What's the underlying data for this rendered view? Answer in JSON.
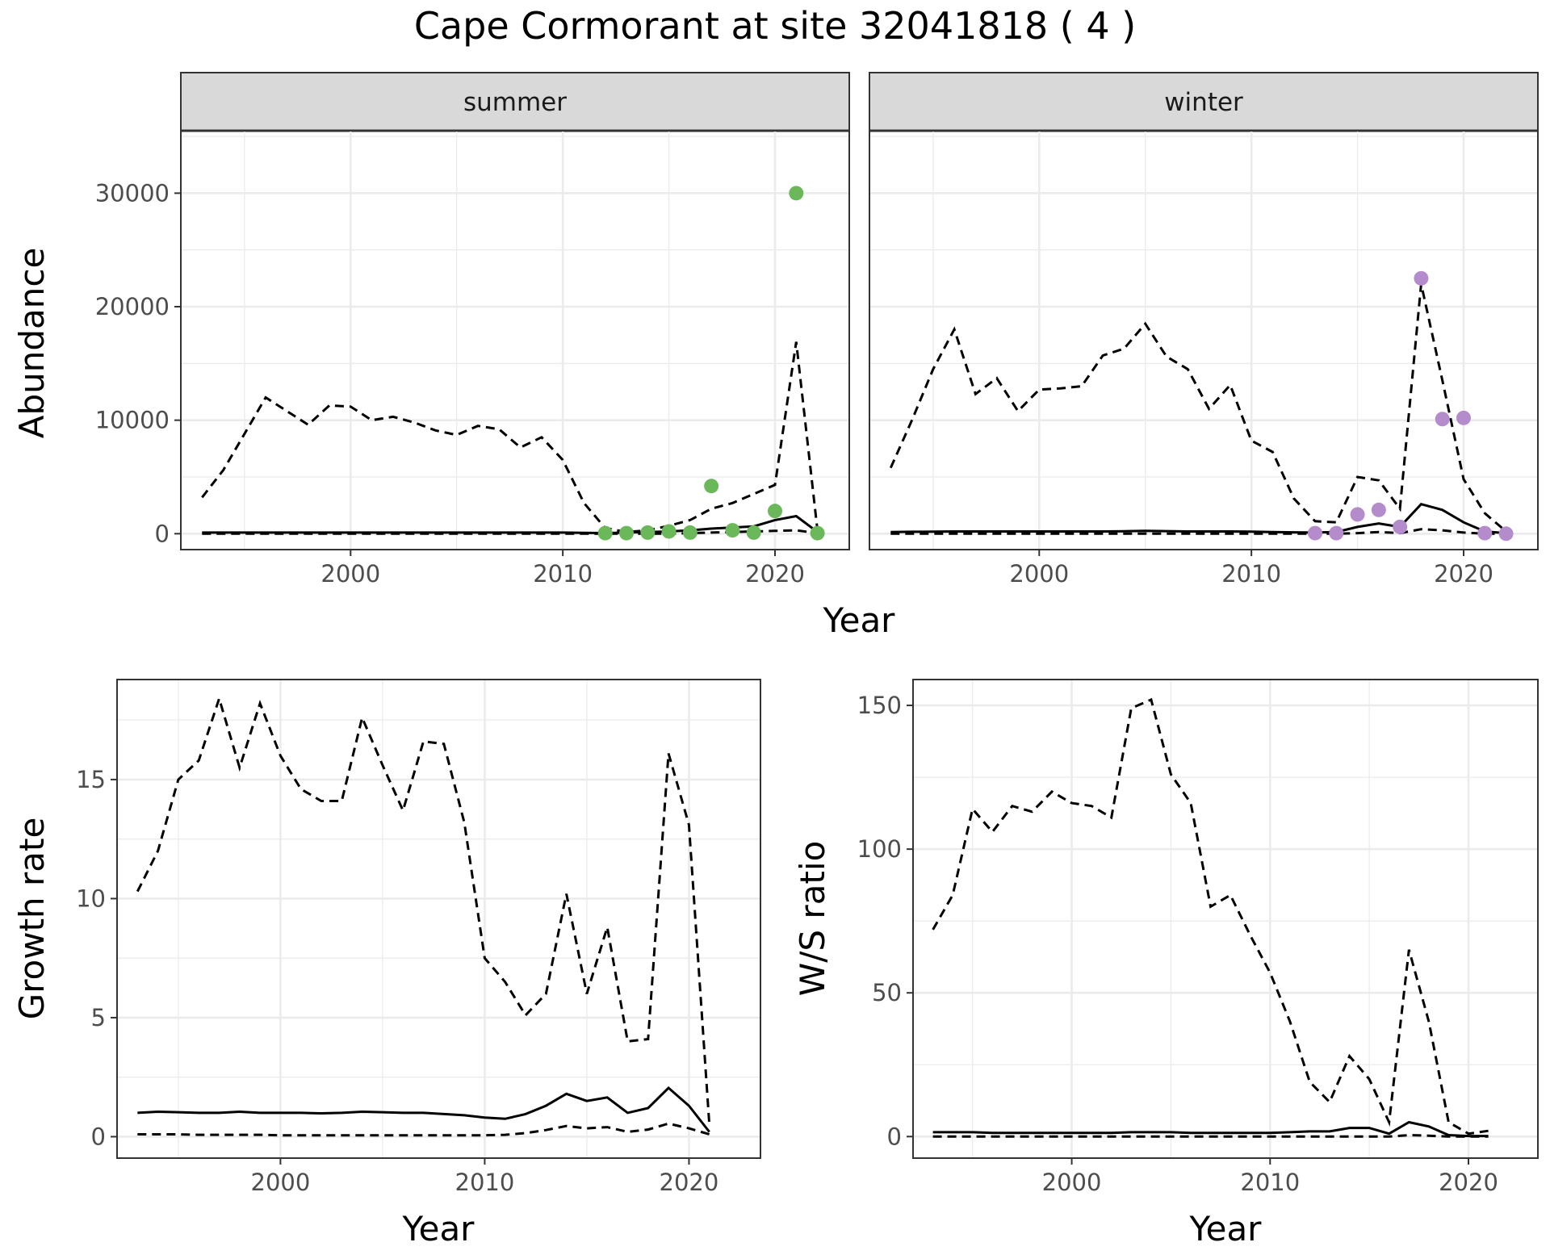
{
  "title": "Cape Cormorant at site 32041818 ( 4 )",
  "colors": {
    "summer_points": "#6ab85a",
    "winter_points": "#b48ccb",
    "strip_fill": "#d9d9d9",
    "lines": "#000000"
  },
  "chart_data": [
    {
      "type": "line",
      "panel": "summer",
      "strip_label": "summer",
      "xlabel": "Year",
      "ylabel": "Abundance",
      "xlim": [
        1992,
        2023.5
      ],
      "ylim": [
        -1400,
        35500
      ],
      "x_ticks": [
        2000,
        2010,
        2020
      ],
      "y_ticks": [
        0,
        10000,
        20000,
        30000
      ],
      "x_tick_labels": [
        "2000",
        "2010",
        "2020"
      ],
      "y_tick_labels": [
        "0",
        "10000",
        "20000",
        "30000"
      ],
      "grid": true,
      "lines": {
        "estimate": {
          "x": [
            1993,
            1994,
            1995,
            1996,
            1997,
            1998,
            1999,
            2000,
            2001,
            2002,
            2003,
            2004,
            2005,
            2006,
            2007,
            2008,
            2009,
            2010,
            2011,
            2012,
            2013,
            2014,
            2015,
            2016,
            2017,
            2018,
            2019,
            2020,
            2021,
            2022
          ],
          "y": [
            100,
            100,
            100,
            100,
            100,
            100,
            100,
            100,
            100,
            100,
            100,
            100,
            100,
            100,
            100,
            100,
            100,
            100,
            80,
            60,
            100,
            150,
            200,
            300,
            450,
            550,
            650,
            1200,
            1550,
            150
          ]
        },
        "upper": {
          "x": [
            1993,
            1994,
            1995,
            1996,
            1997,
            1998,
            1999,
            2000,
            2001,
            2002,
            2003,
            2004,
            2005,
            2006,
            2007,
            2008,
            2009,
            2010,
            2011,
            2012,
            2013,
            2014,
            2015,
            2016,
            2017,
            2018,
            2019,
            2020,
            2021,
            2022
          ],
          "y": [
            3200,
            5600,
            8800,
            12000,
            10800,
            9600,
            11300,
            11200,
            10000,
            10300,
            9800,
            9100,
            8700,
            9500,
            9200,
            7600,
            8500,
            6500,
            2700,
            500,
            150,
            300,
            700,
            1200,
            2200,
            2700,
            3500,
            4300,
            16900,
            300
          ]
        },
        "lower": {
          "x": [
            1993,
            1994,
            1995,
            1996,
            1997,
            1998,
            1999,
            2000,
            2001,
            2002,
            2003,
            2004,
            2005,
            2006,
            2007,
            2008,
            2009,
            2010,
            2011,
            2012,
            2013,
            2014,
            2015,
            2016,
            2017,
            2018,
            2019,
            2020,
            2021,
            2022
          ],
          "y": [
            0,
            0,
            0,
            0,
            0,
            0,
            0,
            0,
            0,
            0,
            0,
            0,
            0,
            0,
            0,
            0,
            0,
            0,
            0,
            0,
            0,
            0,
            0,
            50,
            100,
            150,
            200,
            250,
            300,
            50
          ]
        }
      },
      "points": {
        "x": [
          2012,
          2013,
          2014,
          2015,
          2016,
          2017,
          2018,
          2019,
          2020,
          2021,
          2022
        ],
        "y": [
          50,
          50,
          100,
          200,
          100,
          4200,
          300,
          100,
          2000,
          30000,
          50
        ]
      }
    },
    {
      "type": "line",
      "panel": "winter",
      "strip_label": "winter",
      "xlabel": "Year",
      "ylabel": "Abundance",
      "xlim": [
        1992,
        2023.5
      ],
      "ylim": [
        -1400,
        35500
      ],
      "x_ticks": [
        2000,
        2010,
        2020
      ],
      "y_ticks": [
        0,
        10000,
        20000,
        30000
      ],
      "x_tick_labels": [
        "2000",
        "2010",
        "2020"
      ],
      "y_tick_labels": [],
      "grid": true,
      "lines": {
        "estimate": {
          "x": [
            1993,
            1994,
            1995,
            1996,
            1997,
            1998,
            1999,
            2000,
            2001,
            2002,
            2003,
            2004,
            2005,
            2006,
            2007,
            2008,
            2009,
            2010,
            2011,
            2012,
            2013,
            2014,
            2015,
            2016,
            2017,
            2018,
            2019,
            2020,
            2021,
            2022
          ],
          "y": [
            150,
            170,
            180,
            200,
            200,
            200,
            200,
            200,
            200,
            200,
            200,
            220,
            250,
            230,
            200,
            200,
            200,
            180,
            150,
            120,
            100,
            150,
            600,
            900,
            600,
            2600,
            2100,
            1000,
            200,
            50
          ]
        },
        "upper": {
          "x": [
            1993,
            1994,
            1995,
            1996,
            1997,
            1998,
            1999,
            2000,
            2001,
            2002,
            2003,
            2004,
            2005,
            2006,
            2007,
            2008,
            2009,
            2010,
            2011,
            2012,
            2013,
            2014,
            2015,
            2016,
            2017,
            2018,
            2019,
            2020,
            2021,
            2022
          ],
          "y": [
            5800,
            10000,
            14500,
            18000,
            12300,
            13700,
            10800,
            12700,
            12800,
            13000,
            15700,
            16300,
            18500,
            15600,
            14500,
            11000,
            13100,
            8200,
            7200,
            3100,
            1100,
            1000,
            5000,
            4700,
            2200,
            22000,
            13500,
            4800,
            1800,
            200
          ]
        },
        "lower": {
          "x": [
            1993,
            1994,
            1995,
            1996,
            1997,
            1998,
            1999,
            2000,
            2001,
            2002,
            2003,
            2004,
            2005,
            2006,
            2007,
            2008,
            2009,
            2010,
            2011,
            2012,
            2013,
            2014,
            2015,
            2016,
            2017,
            2018,
            2019,
            2020,
            2021,
            2022
          ],
          "y": [
            0,
            0,
            0,
            0,
            0,
            0,
            0,
            0,
            0,
            0,
            0,
            0,
            0,
            0,
            0,
            0,
            0,
            0,
            0,
            0,
            0,
            0,
            50,
            150,
            50,
            400,
            300,
            100,
            0,
            0
          ]
        }
      },
      "points": {
        "x": [
          2013,
          2014,
          2015,
          2016,
          2017,
          2018,
          2019,
          2020,
          2021,
          2022
        ],
        "y": [
          50,
          50,
          1700,
          2100,
          600,
          22500,
          10100,
          10200,
          50,
          0
        ]
      }
    },
    {
      "type": "line",
      "panel": "growth",
      "xlabel": "Year",
      "ylabel": "Growth rate",
      "xlim": [
        1992,
        2023.5
      ],
      "ylim": [
        -0.9,
        19.2
      ],
      "x_ticks": [
        2000,
        2010,
        2020
      ],
      "y_ticks": [
        0,
        5,
        10,
        15
      ],
      "x_tick_labels": [
        "2000",
        "2010",
        "2020"
      ],
      "y_tick_labels": [
        "0",
        "5",
        "10",
        "15"
      ],
      "grid": true,
      "lines": {
        "estimate": {
          "x": [
            1993,
            1994,
            1995,
            1996,
            1997,
            1998,
            1999,
            2000,
            2001,
            2002,
            2003,
            2004,
            2005,
            2006,
            2007,
            2008,
            2009,
            2010,
            2011,
            2012,
            2013,
            2014,
            2015,
            2016,
            2017,
            2018,
            2019,
            2020,
            2021
          ],
          "y": [
            1.0,
            1.05,
            1.03,
            1.0,
            1.0,
            1.05,
            1.0,
            1.0,
            1.0,
            0.98,
            1.0,
            1.05,
            1.03,
            1.0,
            1.0,
            0.95,
            0.9,
            0.8,
            0.75,
            0.95,
            1.3,
            1.8,
            1.5,
            1.65,
            1.0,
            1.2,
            2.05,
            1.3,
            0.2
          ]
        },
        "upper": {
          "x": [
            1993,
            1994,
            1995,
            1996,
            1997,
            1998,
            1999,
            2000,
            2001,
            2002,
            2003,
            2004,
            2005,
            2006,
            2007,
            2008,
            2009,
            2010,
            2011,
            2012,
            2013,
            2014,
            2015,
            2016,
            2017,
            2018,
            2019,
            2020,
            2021
          ],
          "y": [
            10.3,
            12.0,
            15.0,
            15.8,
            18.4,
            15.5,
            18.2,
            16.0,
            14.6,
            14.1,
            14.1,
            17.6,
            15.6,
            13.7,
            16.6,
            16.5,
            13.2,
            7.5,
            6.5,
            5.1,
            6.0,
            10.2,
            6.0,
            8.8,
            4.0,
            4.1,
            16.1,
            13.1,
            0.5
          ]
        },
        "lower": {
          "x": [
            1993,
            1994,
            1995,
            1996,
            1997,
            1998,
            1999,
            2000,
            2001,
            2002,
            2003,
            2004,
            2005,
            2006,
            2007,
            2008,
            2009,
            2010,
            2011,
            2012,
            2013,
            2014,
            2015,
            2016,
            2017,
            2018,
            2019,
            2020,
            2021
          ],
          "y": [
            0.1,
            0.1,
            0.1,
            0.08,
            0.08,
            0.08,
            0.08,
            0.06,
            0.06,
            0.06,
            0.06,
            0.06,
            0.06,
            0.06,
            0.06,
            0.06,
            0.06,
            0.06,
            0.08,
            0.15,
            0.28,
            0.45,
            0.35,
            0.4,
            0.2,
            0.3,
            0.55,
            0.35,
            0.1
          ]
        }
      }
    },
    {
      "type": "line",
      "panel": "ws_ratio",
      "xlabel": "Year",
      "ylabel": "W/S ratio",
      "xlim": [
        1992,
        2023.5
      ],
      "ylim": [
        -7.5,
        159
      ],
      "x_ticks": [
        2000,
        2010,
        2020
      ],
      "y_ticks": [
        0,
        50,
        100,
        150
      ],
      "x_tick_labels": [
        "2000",
        "2010",
        "2020"
      ],
      "y_tick_labels": [
        "0",
        "50",
        "100",
        "150"
      ],
      "grid": true,
      "lines": {
        "estimate": {
          "x": [
            1993,
            1994,
            1995,
            1996,
            1997,
            1998,
            1999,
            2000,
            2001,
            2002,
            2003,
            2004,
            2005,
            2006,
            2007,
            2008,
            2009,
            2010,
            2011,
            2012,
            2013,
            2014,
            2015,
            2016,
            2017,
            2018,
            2019,
            2020,
            2021
          ],
          "y": [
            1.5,
            1.5,
            1.5,
            1.3,
            1.3,
            1.3,
            1.3,
            1.3,
            1.3,
            1.3,
            1.5,
            1.5,
            1.5,
            1.3,
            1.3,
            1.3,
            1.3,
            1.3,
            1.5,
            1.8,
            1.8,
            3.0,
            3.0,
            1.0,
            5.0,
            3.5,
            0.5,
            0.2,
            0.2
          ]
        },
        "upper": {
          "x": [
            1993,
            1994,
            1995,
            1996,
            1997,
            1998,
            1999,
            2000,
            2001,
            2002,
            2003,
            2004,
            2005,
            2006,
            2007,
            2008,
            2009,
            2010,
            2011,
            2012,
            2013,
            2014,
            2015,
            2016,
            2017,
            2018,
            2019,
            2020,
            2021
          ],
          "y": [
            72,
            84,
            114,
            106,
            115,
            113,
            120,
            116,
            115,
            111,
            149,
            152,
            126,
            116,
            80,
            84,
            70,
            57,
            40,
            19,
            12,
            28,
            20,
            5,
            65,
            40,
            5,
            1,
            2
          ]
        },
        "lower": {
          "x": [
            1993,
            1994,
            1995,
            1996,
            1997,
            1998,
            1999,
            2000,
            2001,
            2002,
            2003,
            2004,
            2005,
            2006,
            2007,
            2008,
            2009,
            2010,
            2011,
            2012,
            2013,
            2014,
            2015,
            2016,
            2017,
            2018,
            2019,
            2020,
            2021
          ],
          "y": [
            0,
            0,
            0,
            0,
            0,
            0,
            0,
            0,
            0,
            0,
            0,
            0,
            0,
            0,
            0,
            0,
            0,
            0,
            0,
            0,
            0,
            0,
            0,
            0,
            0.5,
            0.3,
            0,
            0,
            0
          ]
        }
      }
    }
  ],
  "labels": {
    "summer_strip": "summer",
    "winter_strip": "winter",
    "top_xlabel": "Year",
    "top_ylabel": "Abundance",
    "growth_xlabel": "Year",
    "growth_ylabel": "Growth rate",
    "ws_xlabel": "Year",
    "ws_ylabel": "W/S ratio"
  }
}
